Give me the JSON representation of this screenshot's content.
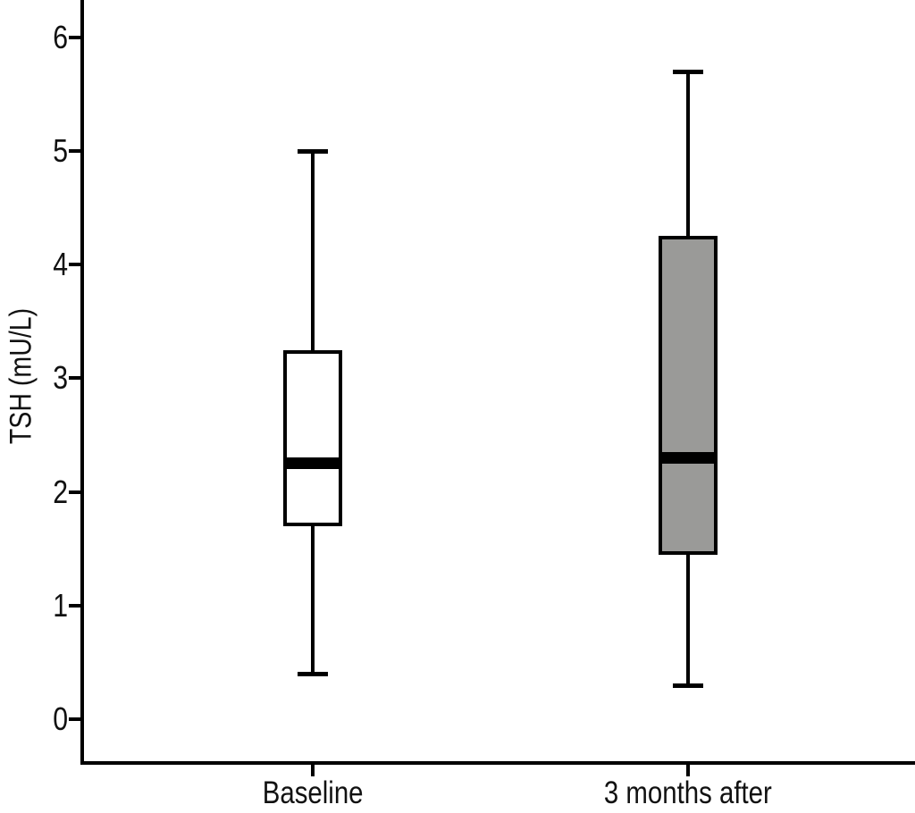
{
  "chart_data": {
    "type": "boxplot",
    "title": "",
    "ylabel": "TSH (mU/L)",
    "xlabel": "",
    "categories": [
      "Baseline",
      "3 months after"
    ],
    "yticks": [
      0,
      1,
      2,
      3,
      4,
      5,
      6
    ],
    "ylim": [
      -0.37,
      6.33
    ],
    "grid": false,
    "legend": "none",
    "series": [
      {
        "name": "Baseline",
        "min": 0.4,
        "q1": 1.7,
        "median": 2.25,
        "q3": 3.25,
        "max": 5.0,
        "fill": "#ffffff"
      },
      {
        "name": "3 months after",
        "min": 0.3,
        "q1": 1.45,
        "median": 2.3,
        "q3": 4.25,
        "max": 5.7,
        "fill": "#9a9a98"
      }
    ],
    "colors": {
      "line": "#000000",
      "text": "#111111",
      "baseline_box_fill": "#ffffff",
      "after_box_fill": "#9a9a98",
      "background": "#ffffff"
    }
  }
}
